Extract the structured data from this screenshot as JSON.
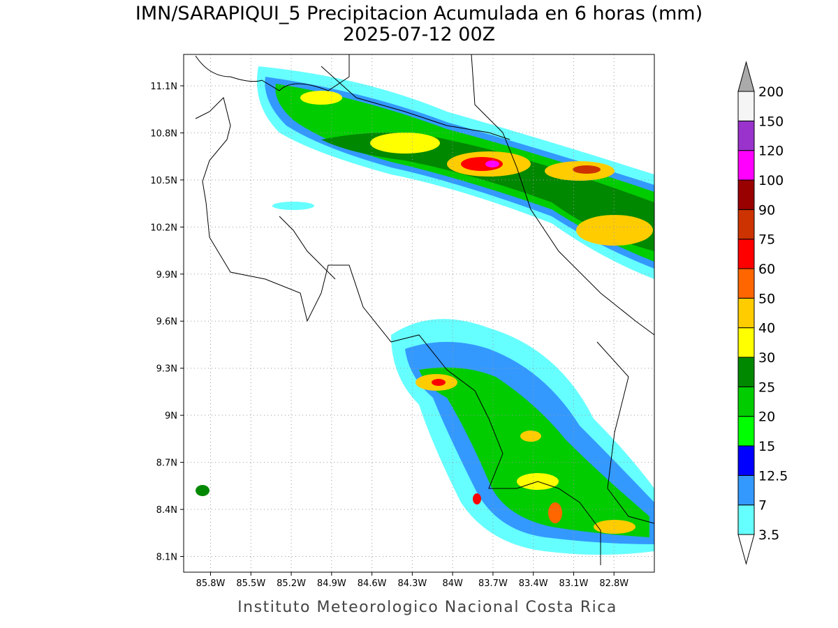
{
  "map": {
    "title": "IMN/SARAPIQUI_5 Precipitacion Acumulada en 6 horas (mm)",
    "subtitle": "2025-07-12 00Z",
    "footer": "Instituto Meteorologico Nacional Costa Rica",
    "xlim": [
      -86.0,
      -82.5
    ],
    "ylim": [
      8.0,
      11.3
    ],
    "xticks": [
      {
        "value": -85.8,
        "label": "85.8W"
      },
      {
        "value": -85.5,
        "label": "85.5W"
      },
      {
        "value": -85.2,
        "label": "85.2W"
      },
      {
        "value": -84.9,
        "label": "84.9W"
      },
      {
        "value": -84.6,
        "label": "84.6W"
      },
      {
        "value": -84.3,
        "label": "84.3W"
      },
      {
        "value": -84.0,
        "label": "84W"
      },
      {
        "value": -83.7,
        "label": "83.7W"
      },
      {
        "value": -83.4,
        "label": "83.4W"
      },
      {
        "value": -83.1,
        "label": "83.1W"
      },
      {
        "value": -82.8,
        "label": "82.8W"
      }
    ],
    "yticks": [
      {
        "value": 8.1,
        "label": "8.1N"
      },
      {
        "value": 8.4,
        "label": "8.4N"
      },
      {
        "value": 8.7,
        "label": "8.7N"
      },
      {
        "value": 9.0,
        "label": "9N"
      },
      {
        "value": 9.3,
        "label": "9.3N"
      },
      {
        "value": 9.6,
        "label": "9.6N"
      },
      {
        "value": 9.9,
        "label": "9.9N"
      },
      {
        "value": 10.2,
        "label": "10.2N"
      },
      {
        "value": 10.5,
        "label": "10.5N"
      },
      {
        "value": 10.8,
        "label": "10.8N"
      },
      {
        "value": 11.1,
        "label": "11.1N"
      }
    ],
    "grid": true,
    "colorbar": {
      "levels": [
        3.5,
        7,
        12.5,
        15,
        20,
        25,
        30,
        40,
        50,
        60,
        75,
        90,
        100,
        120,
        150,
        200
      ],
      "colors": [
        "#66ffff",
        "#3399ff",
        "#0000ff",
        "#00ff00",
        "#00cc00",
        "#008800",
        "#ffff00",
        "#ffcc00",
        "#ff6600",
        "#ff0000",
        "#cc3300",
        "#990000",
        "#ff00ff",
        "#9933cc",
        "#f5f5f5"
      ],
      "under_color": "#ffffff",
      "over_color": "#aaaaaa"
    }
  }
}
